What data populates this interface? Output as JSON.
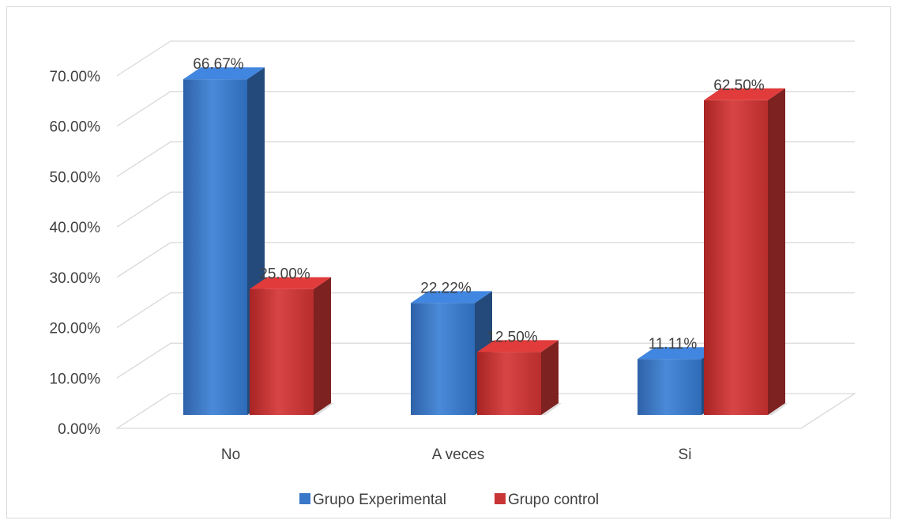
{
  "chart_data": {
    "type": "bar",
    "style": "3d-clustered-column",
    "categories": [
      "No",
      "A veces",
      "Si"
    ],
    "series": [
      {
        "name": "Grupo Experimental",
        "values": [
          66.67,
          22.22,
          11.11
        ],
        "labels": [
          "66.67%",
          "22.22%",
          "11.11%"
        ],
        "color": "#3a78c8"
      },
      {
        "name": "Grupo control",
        "values": [
          25.0,
          12.5,
          62.5
        ],
        "labels": [
          "25.00%",
          "12.50%",
          "62.50%"
        ],
        "color": "#c93535"
      }
    ],
    "ylim": [
      0,
      70
    ],
    "yticks": [
      0,
      10,
      20,
      30,
      40,
      50,
      60,
      70
    ],
    "ytick_labels": [
      "0.00%",
      "10.00%",
      "20.00%",
      "30.00%",
      "40.00%",
      "50.00%",
      "60.00%",
      "70.00%"
    ],
    "grid": true,
    "legend_position": "bottom"
  }
}
